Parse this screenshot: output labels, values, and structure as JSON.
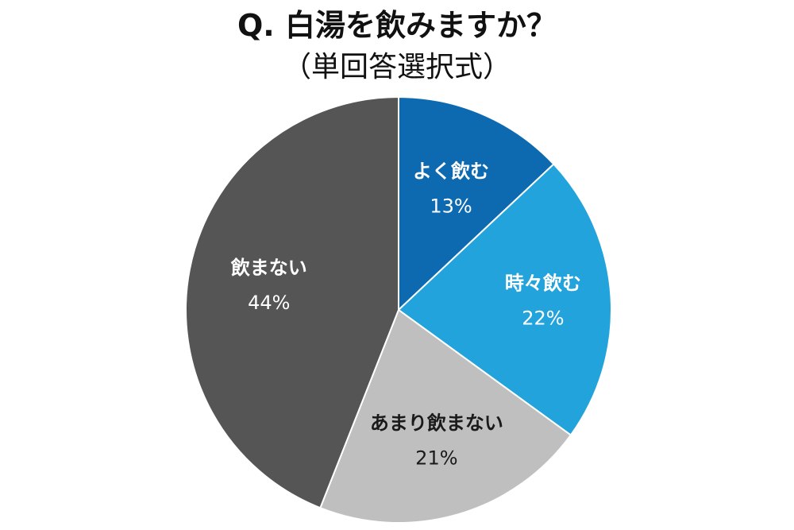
{
  "title": "Q. 白湯を飲みますか？",
  "subtitle": "（単回答選択式）",
  "chart_data": {
    "type": "pie",
    "title": "Q. 白湯を飲みますか？",
    "subtitle": "（単回答選択式）",
    "unit": "%",
    "start": "top (12 o'clock)",
    "direction": "clockwise",
    "slices": [
      {
        "label": "よく飲む",
        "value": 13,
        "display": "13%",
        "color": "#0e6ab0",
        "text_color": "#ffffff"
      },
      {
        "label": "時々飲む",
        "value": 22,
        "display": "22%",
        "color": "#22a3dc",
        "text_color": "#ffffff"
      },
      {
        "label": "あまり飲まない",
        "value": 21,
        "display": "21%",
        "color": "#bfbfbf",
        "text_color": "#1a1a1a"
      },
      {
        "label": "飲まない",
        "value": 44,
        "display": "44%",
        "color": "#555555",
        "text_color": "#ffffff"
      }
    ]
  }
}
